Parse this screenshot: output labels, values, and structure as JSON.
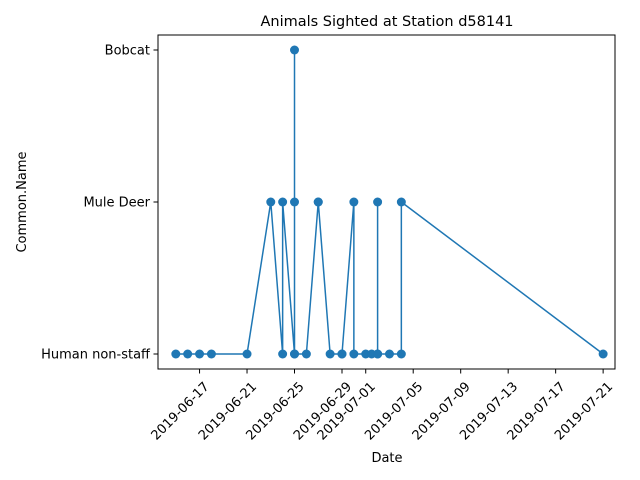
{
  "chart_data": {
    "type": "line",
    "title": "Animals Sighted at Station d58141",
    "xlabel": "Date",
    "ylabel": "Common.Name",
    "categories": [
      "Human non-staff",
      "Mule Deer",
      "Bobcat"
    ],
    "x_axis_type": "date",
    "xlim": [
      "2019-06-13T12:00",
      "2019-07-22T00:00"
    ],
    "x_ticks": [
      "2019-06-17",
      "2019-06-21",
      "2019-06-25",
      "2019-06-29",
      "2019-07-01",
      "2019-07-05",
      "2019-07-09",
      "2019-07-13",
      "2019-07-17",
      "2019-07-21"
    ],
    "grid": false,
    "marker": "circle",
    "line_color": "#1f77b4",
    "series": [
      {
        "points": [
          {
            "x": "2019-06-15T00:00",
            "y": "Human non-staff"
          },
          {
            "x": "2019-06-16T00:00",
            "y": "Human non-staff"
          },
          {
            "x": "2019-06-17T00:00",
            "y": "Human non-staff"
          },
          {
            "x": "2019-06-18T00:00",
            "y": "Human non-staff"
          },
          {
            "x": "2019-06-21T00:00",
            "y": "Human non-staff"
          },
          {
            "x": "2019-06-23T00:00",
            "y": "Mule Deer"
          },
          {
            "x": "2019-06-24T00:00",
            "y": "Human non-staff"
          },
          {
            "x": "2019-06-24T00:00",
            "y": "Mule Deer"
          },
          {
            "x": "2019-06-25T00:00",
            "y": "Human non-staff"
          },
          {
            "x": "2019-06-25T00:00",
            "y": "Mule Deer"
          },
          {
            "x": "2019-06-25T00:00",
            "y": "Bobcat"
          },
          {
            "x": "2019-06-25T00:00",
            "y": "Human non-staff"
          },
          {
            "x": "2019-06-26T00:00",
            "y": "Human non-staff"
          },
          {
            "x": "2019-06-27T00:00",
            "y": "Mule Deer"
          },
          {
            "x": "2019-06-27T00:00",
            "y": "Mule Deer"
          },
          {
            "x": "2019-06-28T00:00",
            "y": "Human non-staff"
          },
          {
            "x": "2019-06-29T00:00",
            "y": "Human non-staff"
          },
          {
            "x": "2019-06-29T00:00",
            "y": "Human non-staff"
          },
          {
            "x": "2019-06-30T00:00",
            "y": "Mule Deer"
          },
          {
            "x": "2019-06-30T00:00",
            "y": "Human non-staff"
          },
          {
            "x": "2019-07-01T00:00",
            "y": "Human non-staff"
          },
          {
            "x": "2019-07-01T12:00",
            "y": "Human non-staff"
          },
          {
            "x": "2019-07-02T00:00",
            "y": "Human non-staff"
          },
          {
            "x": "2019-07-02T00:00",
            "y": "Mule Deer"
          },
          {
            "x": "2019-07-02T00:00",
            "y": "Human non-staff"
          },
          {
            "x": "2019-07-03T00:00",
            "y": "Human non-staff"
          },
          {
            "x": "2019-07-04T00:00",
            "y": "Human non-staff"
          },
          {
            "x": "2019-07-04T00:00",
            "y": "Mule Deer"
          },
          {
            "x": "2019-07-21T00:00",
            "y": "Human non-staff"
          }
        ]
      }
    ]
  }
}
